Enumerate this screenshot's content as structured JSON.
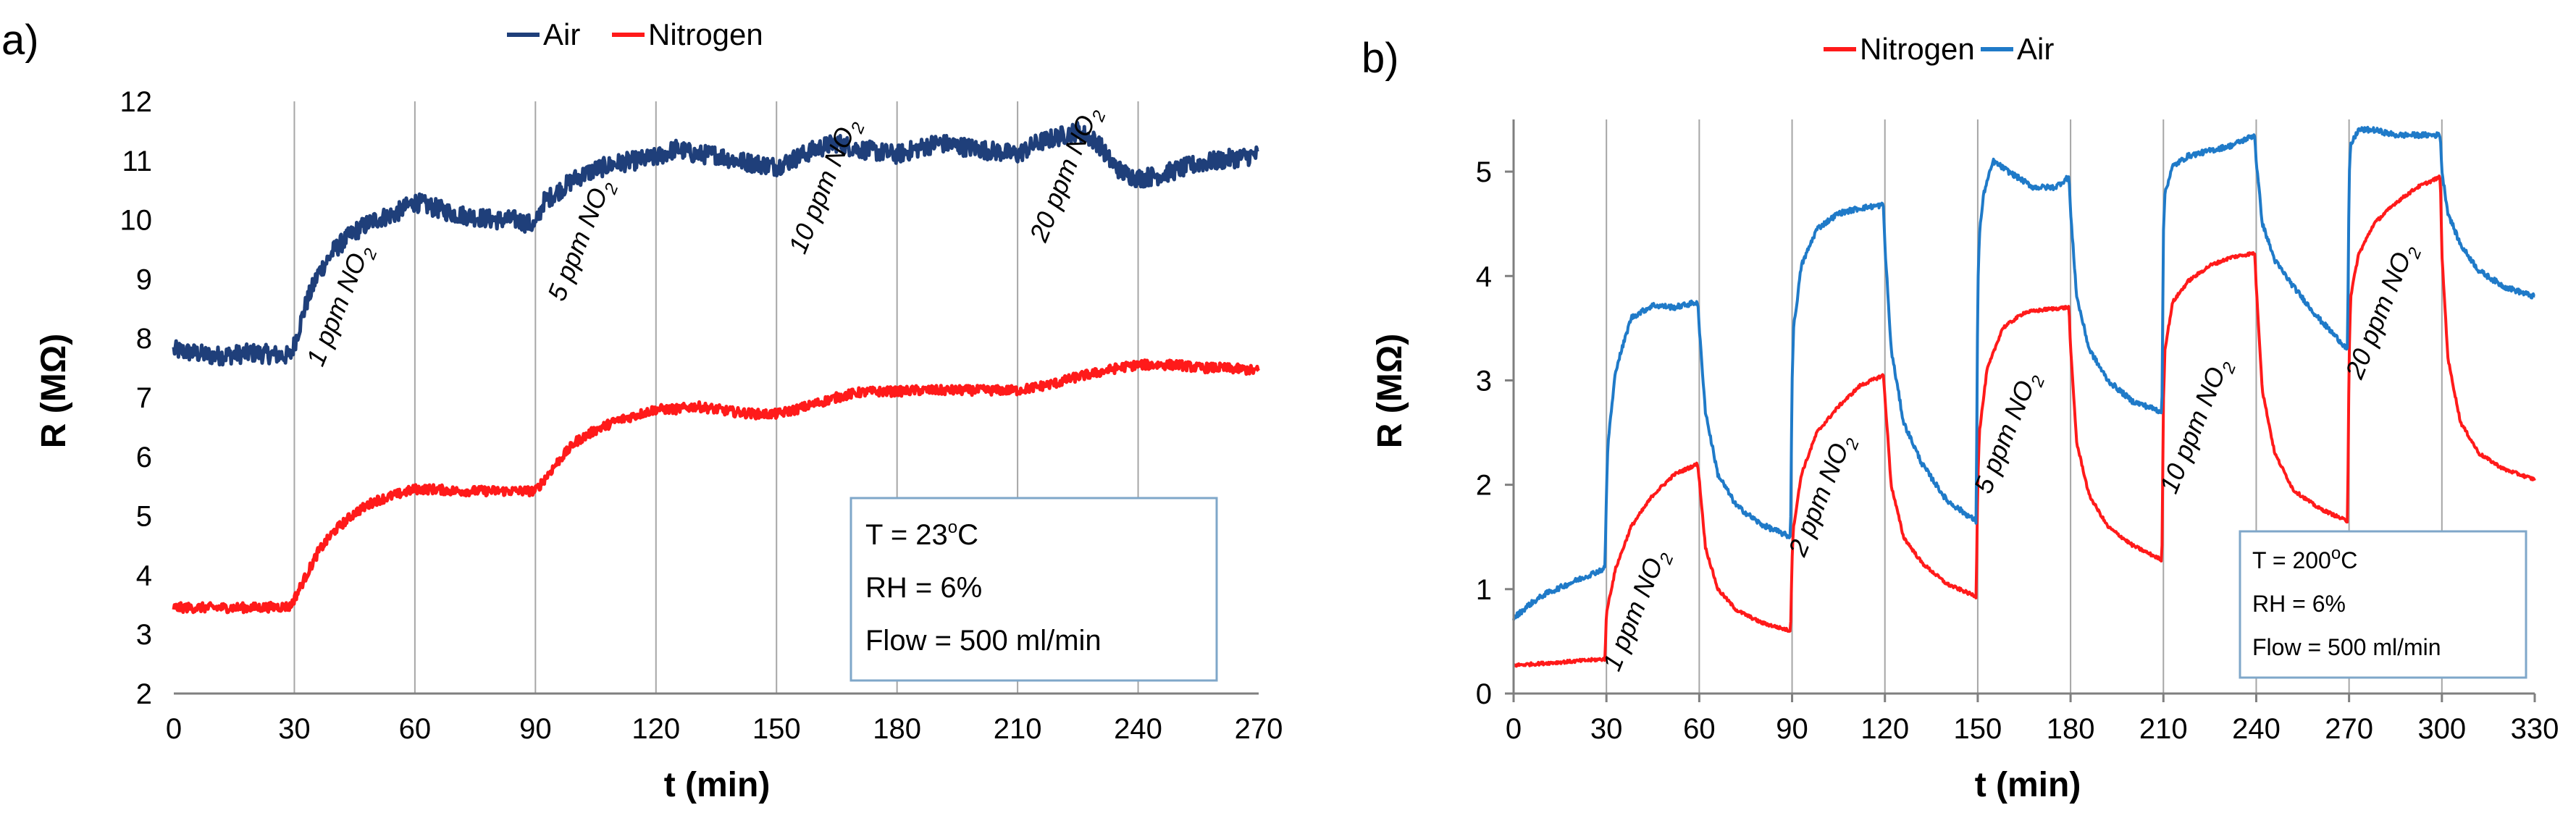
{
  "chart_data": [
    {
      "type": "line",
      "panel_label": "a)",
      "xlabel": "t (min)",
      "ylabel": "R (MΩ)",
      "xlim": [
        0,
        270
      ],
      "ylim": [
        2,
        12
      ],
      "xticks": [
        0,
        30,
        60,
        90,
        120,
        150,
        180,
        210,
        240,
        270
      ],
      "yticks": [
        2,
        3,
        4,
        5,
        6,
        7,
        8,
        9,
        10,
        11,
        12
      ],
      "vlines": [
        30,
        60,
        90,
        120,
        150,
        180,
        210,
        240
      ],
      "legend": [
        {
          "name": "Air",
          "color": "#1f3f7a"
        },
        {
          "name": "Nitrogen",
          "color": "#ff1a1a"
        }
      ],
      "series": [
        {
          "name": "Air",
          "color": "#1f3f7a",
          "x": [
            0,
            10,
            20,
            29,
            30,
            33,
            36,
            40,
            45,
            50,
            55,
            60,
            65,
            70,
            75,
            80,
            85,
            90,
            92,
            96,
            100,
            105,
            110,
            115,
            120,
            125,
            130,
            135,
            140,
            145,
            150,
            155,
            160,
            165,
            170,
            175,
            180,
            185,
            190,
            195,
            200,
            205,
            210,
            215,
            220,
            225,
            230,
            233,
            236,
            240,
            245,
            250,
            255,
            260,
            265,
            270
          ],
          "y": [
            7.8,
            7.7,
            7.75,
            7.7,
            7.9,
            8.6,
            9.1,
            9.5,
            9.8,
            10.0,
            10.1,
            10.3,
            10.2,
            10.1,
            10.05,
            10.0,
            10.0,
            9.9,
            10.3,
            10.5,
            10.7,
            10.85,
            10.95,
            11.0,
            11.05,
            11.2,
            11.1,
            11.1,
            11.0,
            10.95,
            10.9,
            11.05,
            11.2,
            11.3,
            11.2,
            11.15,
            11.1,
            11.2,
            11.3,
            11.25,
            11.2,
            11.15,
            11.1,
            11.3,
            11.4,
            11.5,
            11.3,
            11.0,
            10.8,
            10.7,
            10.75,
            10.85,
            10.95,
            11.0,
            11.05,
            11.1
          ],
          "noise": 0.16
        },
        {
          "name": "Nitrogen",
          "color": "#ff1a1a",
          "x": [
            0,
            10,
            20,
            29,
            30,
            33,
            36,
            40,
            45,
            50,
            55,
            60,
            65,
            70,
            75,
            80,
            85,
            90,
            92,
            96,
            100,
            105,
            110,
            115,
            120,
            125,
            130,
            135,
            140,
            145,
            150,
            155,
            160,
            165,
            170,
            175,
            180,
            185,
            190,
            195,
            200,
            205,
            210,
            215,
            220,
            225,
            230,
            235,
            240,
            245,
            250,
            255,
            260,
            265,
            270
          ],
          "y": [
            3.45,
            3.45,
            3.45,
            3.47,
            3.6,
            4.0,
            4.4,
            4.75,
            5.05,
            5.25,
            5.35,
            5.45,
            5.45,
            5.42,
            5.42,
            5.42,
            5.42,
            5.42,
            5.6,
            5.95,
            6.25,
            6.45,
            6.6,
            6.7,
            6.8,
            6.8,
            6.85,
            6.8,
            6.75,
            6.72,
            6.72,
            6.8,
            6.9,
            7.0,
            7.08,
            7.1,
            7.1,
            7.12,
            7.12,
            7.12,
            7.12,
            7.12,
            7.12,
            7.18,
            7.25,
            7.35,
            7.42,
            7.5,
            7.55,
            7.55,
            7.55,
            7.5,
            7.5,
            7.48,
            7.45
          ],
          "noise": 0.08
        }
      ],
      "annotations": [
        {
          "base": "1 ppm NO",
          "sub": "2",
          "x": 37,
          "y": 7.5
        },
        {
          "base": "5 ppm NO",
          "sub": "2",
          "x": 97,
          "y": 8.6
        },
        {
          "base": "10 ppm NO",
          "sub": "2",
          "x": 157,
          "y": 9.4
        },
        {
          "base": "20 ppm NO",
          "sub": "2",
          "x": 217,
          "y": 9.6
        }
      ],
      "infobox": {
        "lines": [
          {
            "pre": "T = 23",
            "sup": "o",
            "post": "C"
          },
          {
            "pre": "RH = 6%",
            "sup": "",
            "post": ""
          },
          {
            "pre": "Flow = 500 ml/min",
            "sup": "",
            "post": ""
          }
        ]
      }
    },
    {
      "type": "line",
      "panel_label": "b)",
      "xlabel": "t (min)",
      "ylabel": "R (MΩ)",
      "xlim": [
        0,
        330
      ],
      "ylim": [
        0,
        5.5
      ],
      "xticks": [
        0,
        30,
        60,
        90,
        120,
        150,
        180,
        210,
        240,
        270,
        300,
        330
      ],
      "yticks": [
        0,
        1,
        2,
        3,
        4,
        5
      ],
      "vlines": [
        30,
        60,
        90,
        120,
        150,
        180,
        210,
        240,
        270,
        300
      ],
      "legend": [
        {
          "name": "Nitrogen",
          "color": "#ff1a1a"
        },
        {
          "name": "Air",
          "color": "#1f7ac8"
        }
      ],
      "series": [
        {
          "name": "Nitrogen",
          "color": "#ff1a1a",
          "x": [
            0,
            10,
            20,
            29.5,
            30,
            30.5,
            33,
            38,
            45,
            52,
            59.5,
            60,
            62,
            66,
            72,
            80,
            89.5,
            90,
            90.5,
            93,
            98,
            105,
            112,
            119.5,
            120,
            122,
            126,
            132,
            140,
            149.5,
            150,
            150.5,
            153,
            158,
            165,
            172,
            179.5,
            180,
            182,
            186,
            192,
            200,
            209.5,
            210,
            210.5,
            213,
            218,
            225,
            232,
            239.5,
            240,
            242,
            246,
            252,
            260,
            269.5,
            270,
            270.5,
            273,
            278,
            285,
            292,
            299.5,
            300,
            302,
            306,
            312,
            320,
            330
          ],
          "y": [
            0.27,
            0.29,
            0.31,
            0.33,
            0.75,
            0.85,
            1.2,
            1.6,
            1.9,
            2.1,
            2.2,
            2.05,
            1.4,
            1.0,
            0.8,
            0.68,
            0.6,
            1.3,
            1.6,
            2.1,
            2.5,
            2.75,
            2.95,
            3.05,
            2.85,
            2.0,
            1.5,
            1.25,
            1.05,
            0.93,
            2.0,
            2.5,
            3.1,
            3.5,
            3.65,
            3.68,
            3.7,
            3.3,
            2.4,
            1.9,
            1.6,
            1.42,
            1.28,
            2.8,
            3.3,
            3.75,
            3.95,
            4.1,
            4.18,
            4.22,
            3.9,
            2.9,
            2.3,
            1.95,
            1.78,
            1.65,
            3.2,
            3.8,
            4.2,
            4.5,
            4.7,
            4.85,
            4.95,
            4.2,
            3.2,
            2.6,
            2.3,
            2.15,
            2.05
          ],
          "noise": 0.015
        },
        {
          "name": "Air",
          "color": "#1f7ac8",
          "x": [
            0,
            5,
            10,
            20,
            29.5,
            30,
            30.5,
            33,
            38,
            45,
            52,
            59.5,
            60,
            62,
            66,
            72,
            80,
            89.5,
            90,
            90.5,
            93,
            98,
            105,
            112,
            119.5,
            120,
            122,
            126,
            132,
            140,
            149.5,
            150,
            150.5,
            152,
            155,
            160,
            168,
            175,
            179.5,
            180,
            182,
            186,
            192,
            200,
            209.5,
            210,
            210.5,
            213,
            218,
            225,
            232,
            239.5,
            240,
            242,
            246,
            252,
            260,
            269.5,
            270,
            270.5,
            273,
            278,
            285,
            292,
            299.5,
            300,
            302,
            306,
            312,
            320,
            330
          ],
          "y": [
            0.72,
            0.85,
            0.95,
            1.08,
            1.2,
            1.9,
            2.4,
            3.1,
            3.6,
            3.72,
            3.7,
            3.75,
            3.5,
            2.7,
            2.1,
            1.8,
            1.62,
            1.5,
            3.0,
            3.5,
            4.1,
            4.45,
            4.6,
            4.65,
            4.68,
            4.3,
            3.3,
            2.6,
            2.2,
            1.85,
            1.65,
            3.8,
            4.4,
            4.8,
            5.1,
            5.0,
            4.85,
            4.85,
            4.95,
            4.6,
            3.8,
            3.3,
            3.0,
            2.8,
            2.7,
            4.4,
            4.8,
            5.05,
            5.15,
            5.2,
            5.25,
            5.35,
            5.1,
            4.5,
            4.15,
            3.9,
            3.6,
            3.3,
            4.9,
            5.25,
            5.4,
            5.4,
            5.35,
            5.35,
            5.35,
            5.0,
            4.6,
            4.3,
            4.05,
            3.9,
            3.8
          ],
          "noise": 0.025
        }
      ],
      "annotations": [
        {
          "base": "1 ppm NO",
          "sub": "2",
          "x": 34,
          "y": 0.2
        },
        {
          "base": "2 ppm NO",
          "sub": "2",
          "x": 94,
          "y": 1.3
        },
        {
          "base": "5 ppm NO",
          "sub": "2",
          "x": 154,
          "y": 1.9
        },
        {
          "base": "10 ppm NO",
          "sub": "2",
          "x": 214,
          "y": 1.9
        },
        {
          "base": "20 ppm NO",
          "sub": "2",
          "x": 274,
          "y": 3.0
        }
      ],
      "infobox": {
        "lines": [
          {
            "pre": "T = 200",
            "sup": "o",
            "post": "C"
          },
          {
            "pre": "RH = 6%",
            "sup": "",
            "post": ""
          },
          {
            "pre": "Flow = 500 ml/min",
            "sup": "",
            "post": ""
          }
        ]
      }
    }
  ]
}
